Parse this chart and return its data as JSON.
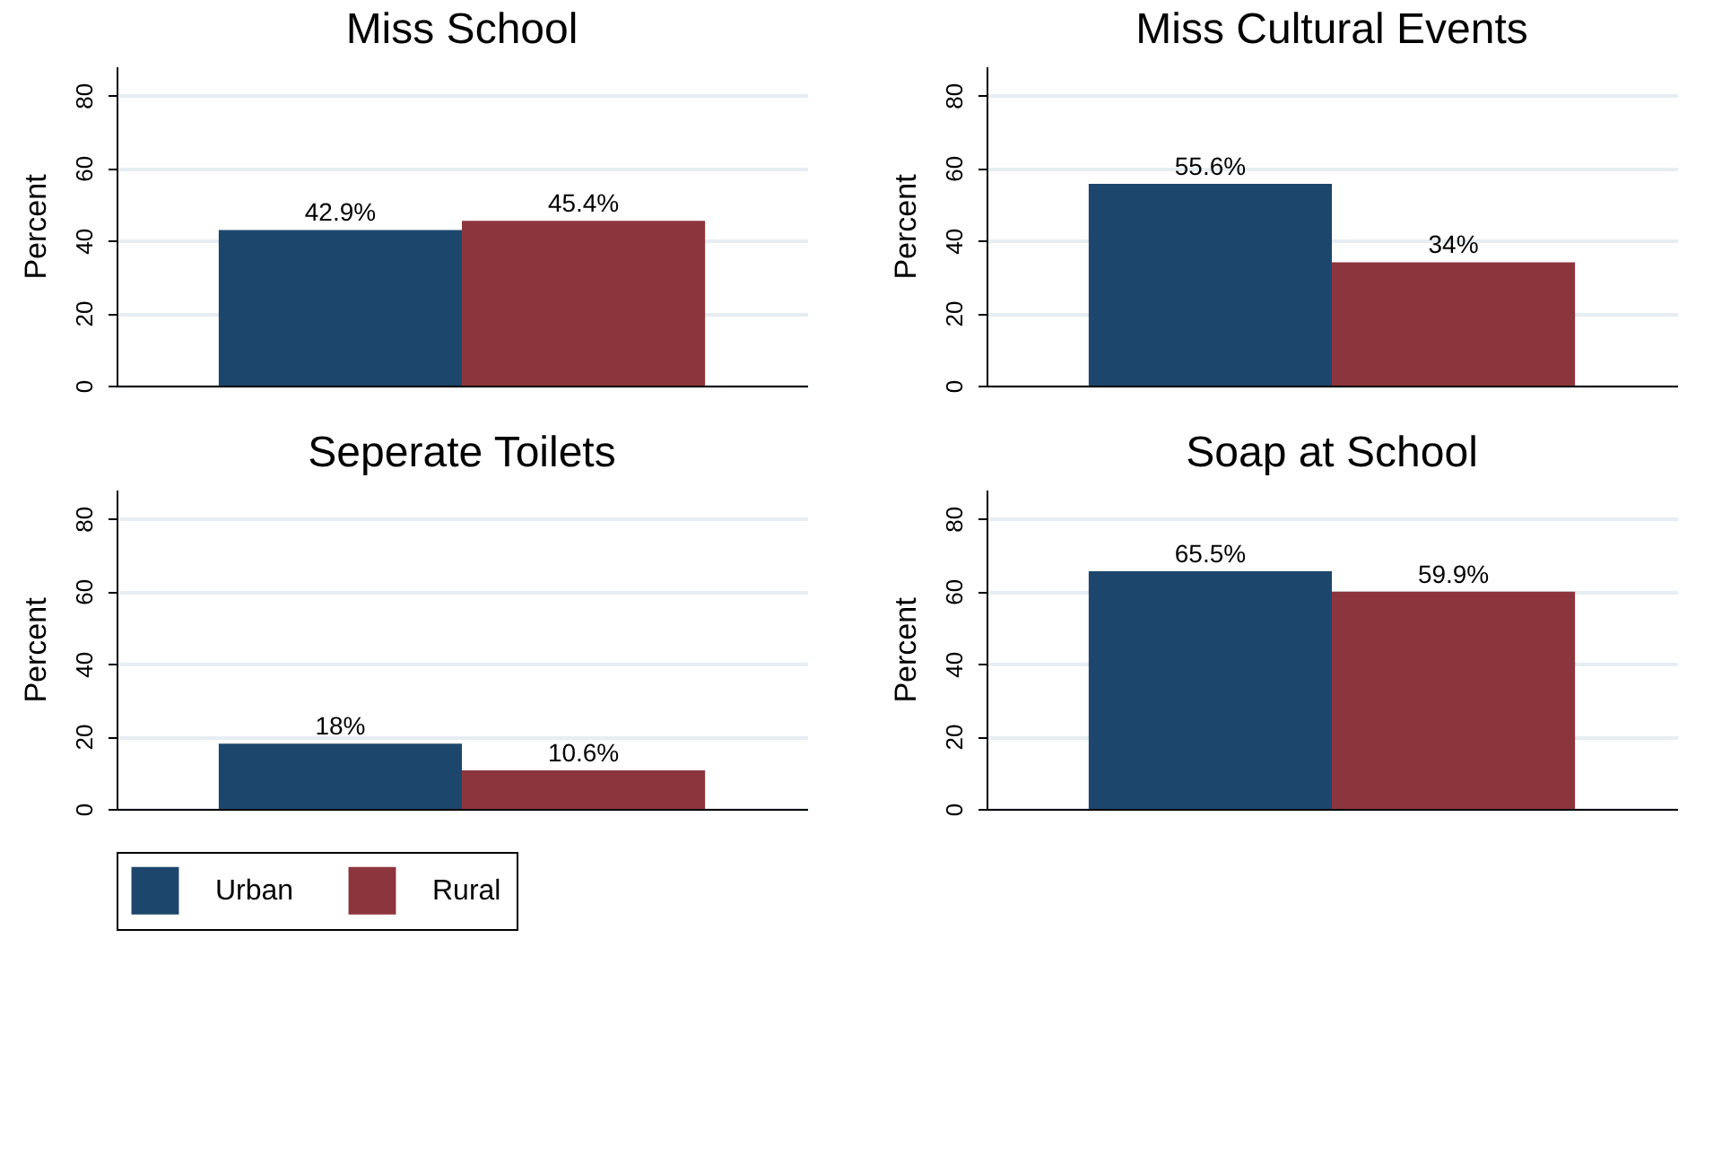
{
  "chart_data": [
    {
      "type": "bar",
      "title": "Miss School",
      "ylabel": "Percent",
      "categories": [
        null
      ],
      "ylim": [
        0,
        88
      ],
      "yticks": [
        0,
        20,
        40,
        60,
        80
      ],
      "grid": "y",
      "legend": "bottom left",
      "series": [
        {
          "name": "Urban",
          "color": "#1d466c",
          "values": [
            42.9
          ],
          "value_labels": [
            "42.9%"
          ]
        },
        {
          "name": "Rural",
          "color": "#8d353d",
          "values": [
            45.4
          ],
          "value_labels": [
            "45.4%"
          ]
        }
      ]
    },
    {
      "type": "bar",
      "title": "Miss Cultural Events",
      "ylabel": "Percent",
      "categories": [
        null
      ],
      "ylim": [
        0,
        88
      ],
      "yticks": [
        0,
        20,
        40,
        60,
        80
      ],
      "grid": "y",
      "series": [
        {
          "name": "Urban",
          "color": "#1d466c",
          "values": [
            55.6
          ],
          "value_labels": [
            "55.6%"
          ]
        },
        {
          "name": "Rural",
          "color": "#8d353d",
          "values": [
            34
          ],
          "value_labels": [
            "34%"
          ]
        }
      ]
    },
    {
      "type": "bar",
      "title": "Seperate Toilets",
      "ylabel": "Percent",
      "categories": [
        null
      ],
      "ylim": [
        0,
        88
      ],
      "yticks": [
        0,
        20,
        40,
        60,
        80
      ],
      "grid": "y",
      "series": [
        {
          "name": "Urban",
          "color": "#1d466c",
          "values": [
            18
          ],
          "value_labels": [
            "18%"
          ]
        },
        {
          "name": "Rural",
          "color": "#8d353d",
          "values": [
            10.6
          ],
          "value_labels": [
            "10.6%"
          ]
        }
      ]
    },
    {
      "type": "bar",
      "title": "Soap at School",
      "ylabel": "Percent",
      "categories": [
        null
      ],
      "ylim": [
        0,
        88
      ],
      "yticks": [
        0,
        20,
        40,
        60,
        80
      ],
      "grid": "y",
      "series": [
        {
          "name": "Urban",
          "color": "#1d466c",
          "values": [
            65.5
          ],
          "value_labels": [
            "65.5%"
          ]
        },
        {
          "name": "Rural",
          "color": "#8d353d",
          "values": [
            59.9
          ],
          "value_labels": [
            "59.9%"
          ]
        }
      ]
    }
  ]
}
